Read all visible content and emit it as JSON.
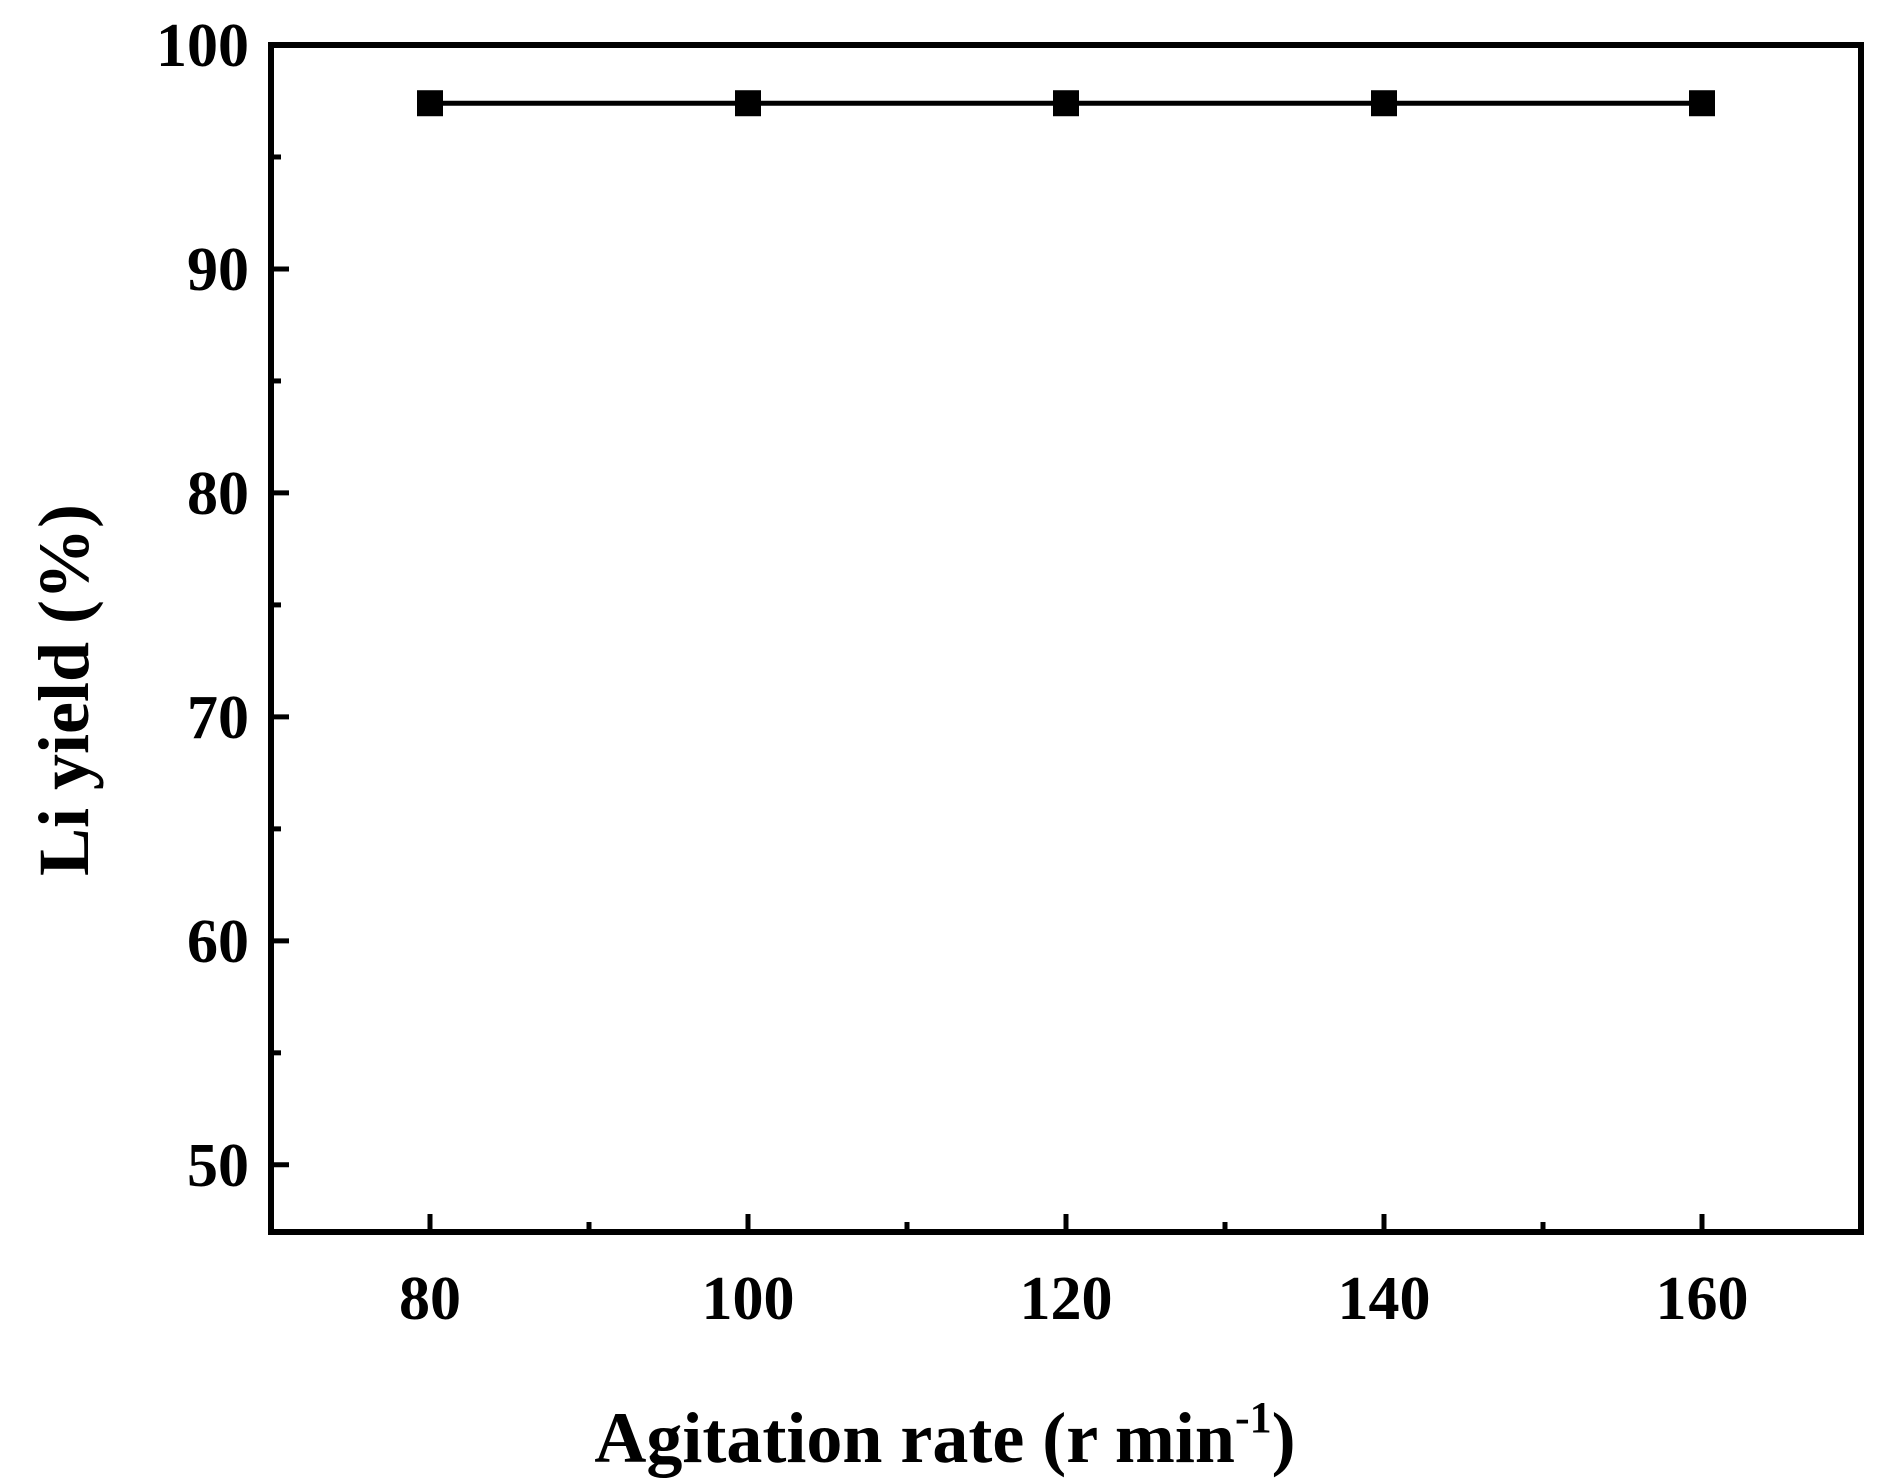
{
  "chart_data": {
    "type": "line",
    "xlabel": "Agitation rate (r min",
    "xlabel_superscript": "-1",
    "xlabel_close": ")",
    "ylabel": "Li yield (%)",
    "xlim": [
      70,
      170
    ],
    "ylim": [
      47,
      100
    ],
    "x_ticks": [
      80,
      100,
      120,
      140,
      160
    ],
    "x_tick_labels": [
      "80",
      "100",
      "120",
      "140",
      "160"
    ],
    "x_minor_ticks": [
      90,
      110,
      130,
      150
    ],
    "y_ticks": [
      50,
      60,
      70,
      80,
      90,
      100
    ],
    "y_tick_labels": [
      "50",
      "60",
      "70",
      "80",
      "90",
      "100"
    ],
    "y_minor_ticks": [
      55,
      65,
      75,
      85,
      95
    ],
    "grid": false,
    "marker": "square",
    "series": [
      {
        "x": [
          80,
          100,
          120,
          140,
          160
        ],
        "values": [
          97.4,
          97.4,
          97.4,
          97.4,
          97.4
        ],
        "color": "#000000"
      }
    ]
  }
}
